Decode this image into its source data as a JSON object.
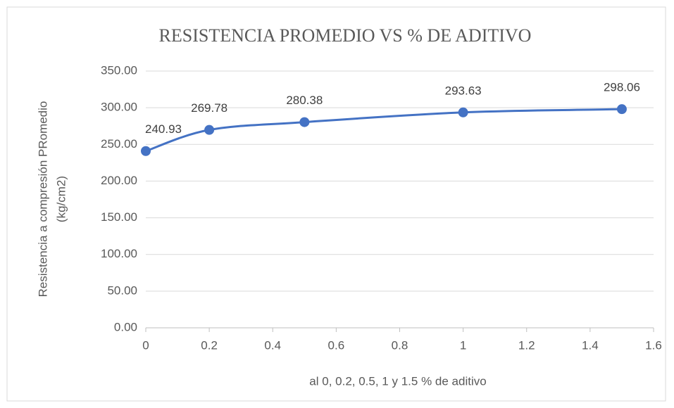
{
  "chart_data": {
    "type": "scatter",
    "title": "RESISTENCIA PROMEDIO VS % DE ADITIVO",
    "xlabel": "al 0, 0.2, 0.5, 1 y 1.5 % de aditivo",
    "ylabel": [
      "Resistencia a compresión PRomedio",
      "(kg/cm2)"
    ],
    "x": [
      0,
      0.2,
      0.5,
      1,
      1.5
    ],
    "series": [
      {
        "color": "#4472c4",
        "values": [
          240.93,
          269.78,
          280.38,
          293.63,
          298.06
        ]
      }
    ],
    "xlim": [
      0,
      1.6
    ],
    "xticks": [
      0,
      0.2,
      0.4,
      0.6,
      0.8,
      1,
      1.2,
      1.4,
      1.6
    ],
    "ylim": [
      0,
      350
    ],
    "yticks": [
      {
        "value": 0,
        "label": "0.00"
      },
      {
        "value": 50,
        "label": "50.00"
      },
      {
        "value": 100,
        "label": "100.00"
      },
      {
        "value": 150,
        "label": "150.00"
      },
      {
        "value": 200,
        "label": "200.00"
      },
      {
        "value": 250,
        "label": "250.00"
      },
      {
        "value": 300,
        "label": "300.00"
      },
      {
        "value": 350,
        "label": "350.00"
      }
    ],
    "grid": true,
    "smooth": true
  }
}
